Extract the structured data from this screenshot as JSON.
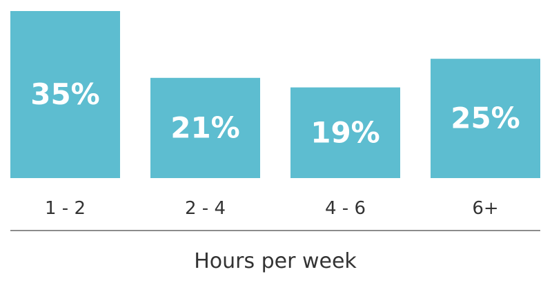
{
  "chart_data": {
    "type": "bar",
    "categories": [
      "1 - 2",
      "2 - 4",
      "4 - 6",
      "6+"
    ],
    "values": [
      35,
      21,
      19,
      25
    ],
    "value_labels": [
      "35%",
      "21%",
      "19%",
      "25%"
    ],
    "title": "",
    "xlabel": "Hours per week",
    "ylabel": "",
    "grid": false,
    "colors": {
      "bar": "#5dbdd0",
      "bar_text": "#ffffff",
      "axis_line": "#666666",
      "text": "#333333"
    }
  }
}
